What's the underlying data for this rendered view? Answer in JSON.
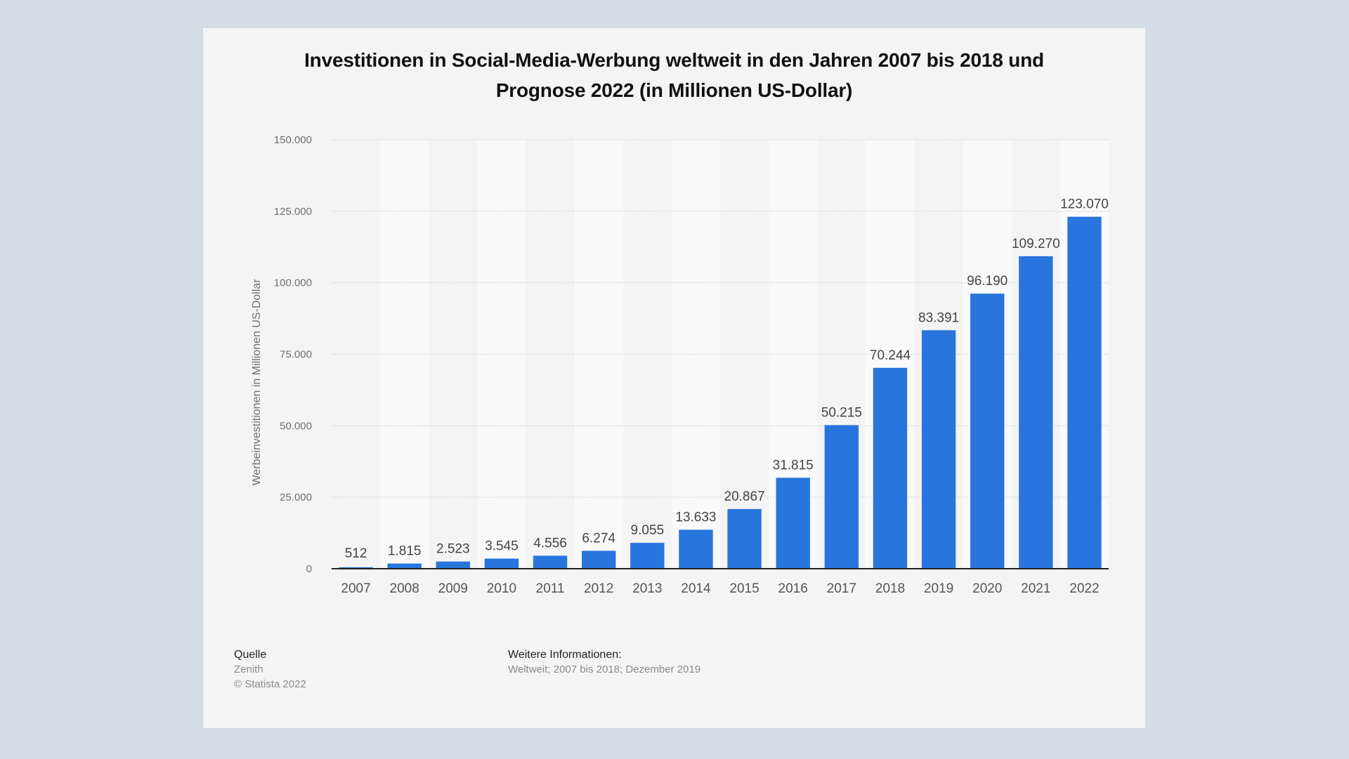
{
  "title_lines": [
    "Investitionen in Social-Media-Werbung weltweit in den Jahren 2007 bis 2018 und",
    "Prognose 2022 (in Millionen US-Dollar)"
  ],
  "chart_data": {
    "type": "bar",
    "title": "Investitionen in Social-Media-Werbung weltweit in den Jahren 2007 bis 2018 und Prognose 2022 (in Millionen US-Dollar)",
    "xlabel": "",
    "ylabel": "Werbeinvestitionen in Millionen US-Dollar",
    "categories": [
      "2007",
      "2008",
      "2009",
      "2010",
      "2011",
      "2012",
      "2013",
      "2014",
      "2015",
      "2016",
      "2017",
      "2018",
      "2019",
      "2020",
      "2021",
      "2022"
    ],
    "values": [
      512,
      1815,
      2523,
      3545,
      4556,
      6274,
      9055,
      13633,
      20867,
      31815,
      50215,
      70244,
      83391,
      96190,
      109270,
      123070
    ],
    "value_labels": [
      "512",
      "1.815",
      "2.523",
      "3.545",
      "4.556",
      "6.274",
      "9.055",
      "13.633",
      "20.867",
      "31.815",
      "50.215",
      "70.244",
      "83.391",
      "96.190",
      "109.270",
      "123.070"
    ],
    "ylim": [
      0,
      150000
    ],
    "yticks": [
      0,
      25000,
      50000,
      75000,
      100000,
      125000,
      150000
    ],
    "ytick_labels": [
      "0",
      "25.000",
      "50.000",
      "75.000",
      "100.000",
      "125.000",
      "150.000"
    ],
    "grid": true,
    "legend": "none",
    "bar_color": "#2876dd"
  },
  "footer": {
    "source_heading": "Quelle",
    "source_name": "Zenith",
    "copyright": "© Statista 2022",
    "info_heading": "Weitere Informationen:",
    "info_text": "Weltweit; 2007 bis 2018; Dezember 2019"
  }
}
